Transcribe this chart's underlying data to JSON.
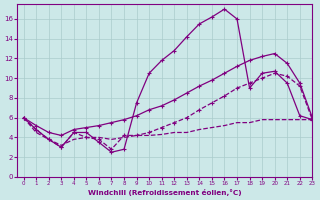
{
  "xlabel": "Windchill (Refroidissement éolien,°C)",
  "background_color": "#cce8e8",
  "grid_color": "#aacccc",
  "line_color": "#800080",
  "x_ticks": [
    0,
    1,
    2,
    3,
    4,
    5,
    6,
    7,
    8,
    9,
    10,
    11,
    12,
    13,
    14,
    15,
    16,
    17,
    18,
    19,
    20,
    21,
    22,
    23
  ],
  "y_ticks": [
    0,
    2,
    4,
    6,
    8,
    10,
    12,
    14,
    16
  ],
  "ylim": [
    0,
    17.5
  ],
  "xlim": [
    -0.5,
    23
  ],
  "series": [
    {
      "x": [
        0,
        1,
        2,
        3,
        4,
        5,
        6,
        7,
        8,
        9,
        10,
        11,
        12,
        13,
        14,
        15,
        16,
        17,
        18,
        19,
        20,
        21,
        22,
        23
      ],
      "y": [
        6.0,
        4.8,
        3.8,
        3.0,
        4.5,
        4.5,
        3.5,
        2.5,
        2.8,
        7.5,
        10.5,
        11.8,
        12.8,
        14.2,
        15.5,
        16.2,
        17.0,
        16.0,
        9.0,
        10.5,
        10.7,
        9.5,
        6.2,
        5.8
      ],
      "linestyle": "-",
      "marker": "+"
    },
    {
      "x": [
        0,
        1,
        2,
        3,
        4,
        5,
        6,
        7,
        8,
        9,
        10,
        11,
        12,
        13,
        14,
        15,
        16,
        17,
        18,
        19,
        20,
        21,
        22,
        23
      ],
      "y": [
        6.0,
        5.2,
        4.5,
        4.2,
        4.8,
        5.0,
        5.2,
        5.5,
        5.8,
        6.2,
        6.8,
        7.2,
        7.8,
        8.5,
        9.2,
        9.8,
        10.5,
        11.2,
        11.8,
        12.2,
        12.5,
        11.5,
        9.5,
        6.0
      ],
      "linestyle": "-",
      "marker": "+"
    },
    {
      "x": [
        0,
        1,
        2,
        3,
        4,
        5,
        6,
        7,
        8,
        9,
        10,
        11,
        12,
        13,
        14,
        15,
        16,
        17,
        18,
        19,
        20,
        21,
        22,
        23
      ],
      "y": [
        6.0,
        4.8,
        3.8,
        3.0,
        4.5,
        4.0,
        3.8,
        2.8,
        4.2,
        4.2,
        4.5,
        5.0,
        5.5,
        6.0,
        6.8,
        7.5,
        8.2,
        9.0,
        9.5,
        10.0,
        10.5,
        10.2,
        9.2,
        5.8
      ],
      "linestyle": "--",
      "marker": "+"
    },
    {
      "x": [
        0,
        1,
        2,
        3,
        4,
        5,
        6,
        7,
        8,
        9,
        10,
        11,
        12,
        13,
        14,
        15,
        16,
        17,
        18,
        19,
        20,
        21,
        22,
        23
      ],
      "y": [
        6.0,
        4.5,
        3.8,
        3.2,
        3.8,
        4.0,
        4.0,
        3.8,
        4.0,
        4.2,
        4.2,
        4.3,
        4.5,
        4.5,
        4.8,
        5.0,
        5.2,
        5.5,
        5.5,
        5.8,
        5.8,
        5.8,
        5.8,
        5.8
      ],
      "linestyle": "--",
      "marker": null
    }
  ]
}
